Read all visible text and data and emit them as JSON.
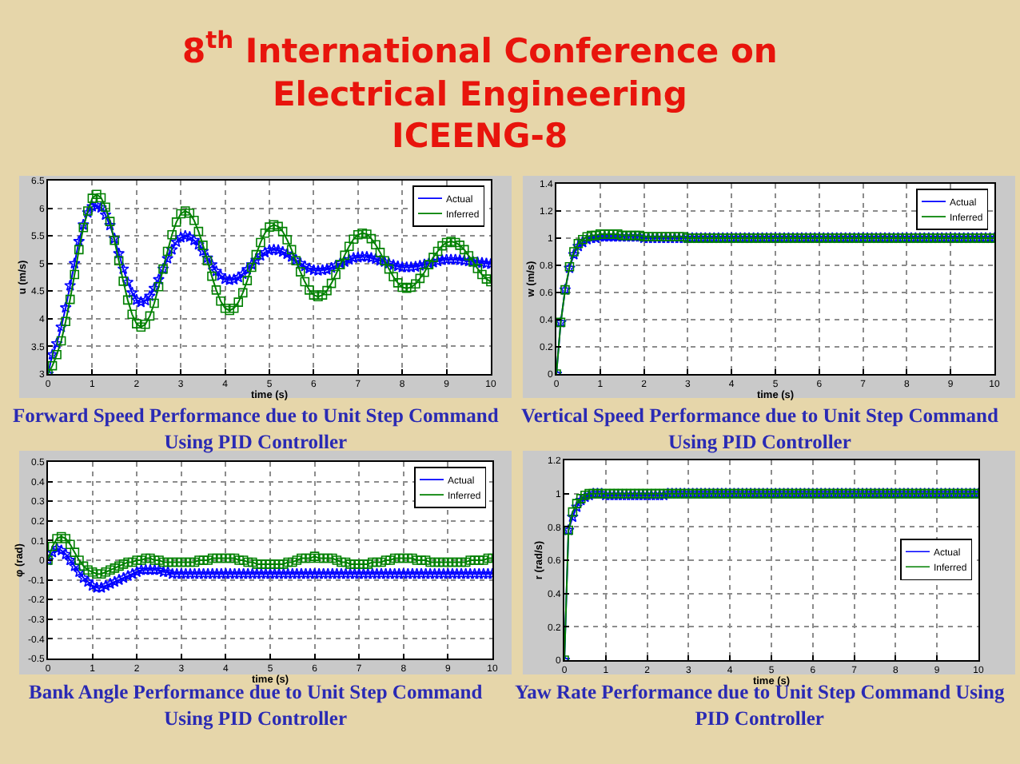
{
  "chart_data": [
    {
      "type": "other",
      "title": "8$^{th}$ International Conference on Electrical Engineering",
      "subtitle": "ICEENG-8"
    },
    {
      "type": "line",
      "title": "Forward Speed Performance due to Unit Step Command Using PID Controller",
      "xlabel": "time (s)",
      "ylabel": "u (m/s)",
      "xlim": [
        0,
        10
      ],
      "xticks": [
        0,
        1,
        2,
        3,
        4,
        5,
        6,
        7,
        8,
        9,
        10
      ],
      "ylim": [
        3,
        6.5
      ],
      "yticks": [
        3,
        3.5,
        4,
        4.5,
        5,
        5.5,
        6,
        6.5
      ],
      "grid": true,
      "legend": "top right",
      "x": [
        0,
        0.1,
        0.2,
        0.3,
        0.4,
        0.5,
        0.6,
        0.7,
        0.8,
        0.9,
        1,
        1.1,
        1.2,
        1.3,
        1.4,
        1.5,
        1.6,
        1.7,
        1.8,
        1.9,
        2,
        2.1,
        2.2,
        2.3,
        2.4,
        2.5,
        2.6,
        2.7,
        2.8,
        2.9,
        3,
        3.1,
        3.2,
        3.3,
        3.4,
        3.5,
        3.6,
        3.7,
        3.8,
        3.9,
        4,
        4.1,
        4.2,
        4.3,
        4.4,
        4.5,
        4.6,
        4.7,
        4.8,
        4.9,
        5,
        5.1,
        5.2,
        5.3,
        5.4,
        5.5,
        5.6,
        5.7,
        5.8,
        5.9,
        6,
        6.1,
        6.2,
        6.3,
        6.4,
        6.5,
        6.6,
        6.7,
        6.8,
        6.9,
        7,
        7.1,
        7.2,
        7.3,
        7.4,
        7.5,
        7.6,
        7.7,
        7.8,
        7.9,
        8,
        8.1,
        8.2,
        8.3,
        8.4,
        8.5,
        8.6,
        8.7,
        8.8,
        8.9,
        9,
        9.1,
        9.2,
        9.3,
        9.4,
        9.5,
        9.6,
        9.7,
        9.8,
        9.9,
        10
      ],
      "series": [
        {
          "name": "Actual",
          "color": "#0000ff",
          "marker": "star",
          "values": [
            3,
            3.35,
            3.55,
            3.85,
            4.2,
            4.6,
            5,
            5.4,
            5.7,
            5.92,
            6.03,
            6.05,
            6.01,
            5.88,
            5.69,
            5.45,
            5.18,
            4.9,
            4.66,
            4.47,
            4.34,
            4.3,
            4.33,
            4.41,
            4.55,
            4.71,
            4.9,
            5.09,
            5.25,
            5.39,
            5.47,
            5.5,
            5.48,
            5.42,
            5.34,
            5.22,
            5.1,
            4.98,
            4.86,
            4.78,
            4.72,
            4.7,
            4.71,
            4.75,
            4.81,
            4.89,
            4.98,
            5.06,
            5.14,
            5.2,
            5.24,
            5.25,
            5.24,
            5.21,
            5.17,
            5.12,
            5.06,
            5,
            4.95,
            4.91,
            4.88,
            4.87,
            4.88,
            4.89,
            4.92,
            4.96,
            5,
            5.03,
            5.07,
            5.1,
            5.11,
            5.12,
            5.12,
            5.1,
            5.08,
            5.05,
            5.03,
            5,
            4.97,
            4.95,
            4.93,
            4.93,
            4.93,
            4.94,
            4.96,
            4.98,
            5,
            5.02,
            5.04,
            5.06,
            5.07,
            5.07,
            5.07,
            5.06,
            5.05,
            5.04,
            5.03,
            5.02,
            5.01,
            5,
            4.99
          ]
        },
        {
          "name": "Inferred",
          "color": "#008000",
          "marker": "square",
          "values": [
            3,
            3.15,
            3.35,
            3.6,
            3.95,
            4.35,
            4.8,
            5.25,
            5.65,
            5.95,
            6.18,
            6.25,
            6.19,
            6.02,
            5.76,
            5.42,
            5.05,
            4.68,
            4.34,
            4.08,
            3.91,
            3.85,
            3.9,
            4.05,
            4.28,
            4.58,
            4.9,
            5.22,
            5.52,
            5.75,
            5.9,
            5.95,
            5.91,
            5.78,
            5.58,
            5.33,
            5.05,
            4.77,
            4.52,
            4.32,
            4.19,
            4.15,
            4.19,
            4.3,
            4.47,
            4.69,
            4.93,
            5.16,
            5.38,
            5.55,
            5.66,
            5.7,
            5.67,
            5.58,
            5.43,
            5.25,
            5.05,
            4.85,
            4.67,
            4.52,
            4.43,
            4.4,
            4.43,
            4.51,
            4.64,
            4.8,
            4.98,
            5.15,
            5.31,
            5.44,
            5.52,
            5.55,
            5.53,
            5.45,
            5.34,
            5.2,
            5.05,
            4.9,
            4.76,
            4.65,
            4.57,
            4.55,
            4.57,
            4.63,
            4.73,
            4.84,
            4.98,
            5.11,
            5.22,
            5.32,
            5.38,
            5.4,
            5.38,
            5.33,
            5.25,
            5.14,
            5.03,
            4.91,
            4.8,
            4.72,
            4.67
          ]
        }
      ]
    },
    {
      "type": "line",
      "title": "Vertical Speed Performance due to Unit Step Command Using PID Controller",
      "xlabel": "time (s)",
      "ylabel": "w (m/s)",
      "xlim": [
        0,
        10
      ],
      "xticks": [
        0,
        1,
        2,
        3,
        4,
        5,
        6,
        7,
        8,
        9,
        10
      ],
      "ylim": [
        0,
        1.4
      ],
      "yticks": [
        0,
        0.2,
        0.4,
        0.6,
        0.8,
        1,
        1.2,
        1.4
      ],
      "grid": true,
      "legend": "top right",
      "x": [
        0,
        0.1,
        0.2,
        0.3,
        0.4,
        0.5,
        0.6,
        0.7,
        0.8,
        0.9,
        1,
        1.1,
        1.2,
        1.3,
        1.4,
        1.5,
        1.6,
        1.7,
        1.8,
        1.9,
        2,
        2.1,
        2.2,
        2.3,
        2.4,
        2.5,
        2.6,
        2.7,
        2.8,
        2.9,
        3,
        3.1,
        3.2,
        3.3,
        3.4,
        3.5,
        3.6,
        3.7,
        3.8,
        3.9,
        4,
        4.1,
        4.2,
        4.3,
        4.4,
        4.5,
        4.6,
        4.7,
        4.8,
        4.9,
        5,
        5.1,
        5.2,
        5.3,
        5.4,
        5.5,
        5.6,
        5.7,
        5.8,
        5.9,
        6,
        6.1,
        6.2,
        6.3,
        6.4,
        6.5,
        6.6,
        6.7,
        6.8,
        6.9,
        7,
        7.1,
        7.2,
        7.3,
        7.4,
        7.5,
        7.6,
        7.7,
        7.8,
        7.9,
        8,
        8.1,
        8.2,
        8.3,
        8.4,
        8.5,
        8.6,
        8.7,
        8.8,
        8.9,
        9,
        9.1,
        9.2,
        9.3,
        9.4,
        9.5,
        9.6,
        9.7,
        9.8,
        9.9,
        10
      ],
      "series": [
        {
          "name": "Actual",
          "color": "#0000ff",
          "marker": "star",
          "values": [
            0,
            0.38,
            0.62,
            0.78,
            0.88,
            0.94,
            0.97,
            0.99,
            1,
            1,
            1.01,
            1.01,
            1.01,
            1.01,
            1.01,
            1.01,
            1.01,
            1.01,
            1.01,
            1.01,
            1,
            1,
            1,
            1,
            1,
            1,
            1,
            1,
            1,
            1,
            1,
            1,
            1,
            1,
            1,
            1,
            1,
            1,
            1,
            1,
            1,
            1,
            1,
            1,
            1,
            1,
            1,
            1,
            1,
            1,
            1,
            1,
            1,
            1,
            1,
            1,
            1,
            1,
            1,
            1,
            1,
            1,
            1,
            1,
            1,
            1,
            1,
            1,
            1,
            1,
            1,
            1,
            1,
            1,
            1,
            1,
            1,
            1,
            1,
            1,
            1,
            1,
            1,
            1,
            1,
            1,
            1,
            1,
            1,
            1,
            1,
            1,
            1,
            1,
            1,
            1,
            1,
            1,
            1,
            1,
            1
          ]
        },
        {
          "name": "Inferred",
          "color": "#008000",
          "marker": "square",
          "values": [
            0,
            0.38,
            0.62,
            0.79,
            0.9,
            0.96,
            0.99,
            1.01,
            1.02,
            1.02,
            1.03,
            1.03,
            1.03,
            1.03,
            1.03,
            1.02,
            1.02,
            1.02,
            1.02,
            1.02,
            1.01,
            1.01,
            1.01,
            1.01,
            1.01,
            1.01,
            1.01,
            1.01,
            1.01,
            1.01,
            1,
            1,
            1,
            1,
            1,
            1,
            1,
            1,
            1,
            1,
            1,
            1,
            1,
            1,
            1,
            1,
            1,
            1,
            1,
            1,
            1,
            1,
            1,
            1,
            1,
            1,
            1,
            1,
            1,
            1,
            1,
            1,
            1,
            1,
            1,
            1,
            1,
            1,
            1,
            1,
            1,
            1,
            1,
            1,
            1,
            1,
            1,
            1,
            1,
            1,
            1,
            1,
            1,
            1,
            1,
            1,
            1,
            1,
            1,
            1,
            1,
            1,
            1,
            1,
            1,
            1,
            1,
            1,
            1,
            1,
            1
          ]
        }
      ]
    },
    {
      "type": "line",
      "title": "Bank Angle Performance due to Unit Step Command Using PID Controller",
      "xlabel": "time (s)",
      "ylabel": "φ (rad)",
      "xlim": [
        0,
        10
      ],
      "xticks": [
        0,
        1,
        2,
        3,
        4,
        5,
        6,
        7,
        8,
        9,
        10
      ],
      "ylim": [
        -0.5,
        0.5
      ],
      "yticks": [
        -0.5,
        -0.4,
        -0.3,
        -0.2,
        -0.1,
        0,
        0.1,
        0.2,
        0.3,
        0.4,
        0.5
      ],
      "grid": true,
      "legend": "top right",
      "x": [
        0,
        0.1,
        0.2,
        0.3,
        0.4,
        0.5,
        0.6,
        0.7,
        0.8,
        0.9,
        1,
        1.1,
        1.2,
        1.3,
        1.4,
        1.5,
        1.6,
        1.7,
        1.8,
        1.9,
        2,
        2.1,
        2.2,
        2.3,
        2.4,
        2.5,
        2.6,
        2.7,
        2.8,
        2.9,
        3,
        3.1,
        3.2,
        3.3,
        3.4,
        3.5,
        3.6,
        3.7,
        3.8,
        3.9,
        4,
        4.1,
        4.2,
        4.3,
        4.4,
        4.5,
        4.6,
        4.7,
        4.8,
        4.9,
        5,
        5.1,
        5.2,
        5.3,
        5.4,
        5.5,
        5.6,
        5.7,
        5.8,
        5.9,
        6,
        6.1,
        6.2,
        6.3,
        6.4,
        6.5,
        6.6,
        6.7,
        6.8,
        6.9,
        7,
        7.1,
        7.2,
        7.3,
        7.4,
        7.5,
        7.6,
        7.7,
        7.8,
        7.9,
        8,
        8.1,
        8.2,
        8.3,
        8.4,
        8.5,
        8.6,
        8.7,
        8.8,
        8.9,
        9,
        9.1,
        9.2,
        9.3,
        9.4,
        9.5,
        9.6,
        9.7,
        9.8,
        9.9,
        10
      ],
      "series": [
        {
          "name": "Actual",
          "color": "#0000ff",
          "marker": "star",
          "values": [
            0,
            0.04,
            0.06,
            0.05,
            0.03,
            0,
            -0.03,
            -0.06,
            -0.09,
            -0.11,
            -0.13,
            -0.14,
            -0.14,
            -0.13,
            -0.12,
            -0.11,
            -0.1,
            -0.09,
            -0.08,
            -0.07,
            -0.06,
            -0.05,
            -0.05,
            -0.05,
            -0.05,
            -0.05,
            -0.06,
            -0.06,
            -0.07,
            -0.07,
            -0.07,
            -0.07,
            -0.07,
            -0.07,
            -0.07,
            -0.07,
            -0.07,
            -0.07,
            -0.07,
            -0.07,
            -0.07,
            -0.07,
            -0.07,
            -0.07,
            -0.07,
            -0.07,
            -0.07,
            -0.07,
            -0.07,
            -0.07,
            -0.07,
            -0.07,
            -0.07,
            -0.07,
            -0.07,
            -0.07,
            -0.07,
            -0.07,
            -0.07,
            -0.07,
            -0.07,
            -0.07,
            -0.07,
            -0.07,
            -0.07,
            -0.07,
            -0.07,
            -0.07,
            -0.07,
            -0.07,
            -0.07,
            -0.07,
            -0.07,
            -0.07,
            -0.07,
            -0.07,
            -0.07,
            -0.07,
            -0.07,
            -0.07,
            -0.07,
            -0.07,
            -0.07,
            -0.07,
            -0.07,
            -0.07,
            -0.07,
            -0.07,
            -0.07,
            -0.07,
            -0.07,
            -0.07,
            -0.07,
            -0.07,
            -0.07,
            -0.07,
            -0.07,
            -0.07,
            -0.07,
            -0.07,
            -0.07
          ]
        },
        {
          "name": "Inferred",
          "color": "#008000",
          "marker": "square",
          "values": [
            0,
            0.07,
            0.11,
            0.12,
            0.11,
            0.08,
            0.04,
            0,
            -0.03,
            -0.05,
            -0.06,
            -0.07,
            -0.07,
            -0.06,
            -0.05,
            -0.04,
            -0.03,
            -0.02,
            -0.01,
            -0.01,
            0,
            0,
            0.01,
            0.01,
            0,
            0,
            -0.01,
            -0.01,
            -0.01,
            -0.01,
            -0.01,
            -0.01,
            -0.01,
            -0.01,
            0,
            0,
            0,
            0.01,
            0.01,
            0.01,
            0.01,
            0.01,
            0.01,
            0,
            0,
            -0.01,
            -0.01,
            -0.02,
            -0.02,
            -0.02,
            -0.02,
            -0.02,
            -0.02,
            -0.02,
            -0.01,
            -0.01,
            0,
            0.01,
            0.01,
            0.01,
            0.02,
            0.01,
            0.01,
            0.01,
            0.01,
            0,
            -0.01,
            -0.01,
            -0.02,
            -0.02,
            -0.02,
            -0.02,
            -0.02,
            -0.01,
            -0.01,
            -0.01,
            0,
            0,
            0.01,
            0.01,
            0.01,
            0.01,
            0.01,
            0,
            0,
            0,
            -0.01,
            -0.01,
            -0.01,
            -0.01,
            -0.01,
            -0.01,
            -0.01,
            -0.01,
            -0.01,
            0,
            0,
            0,
            0,
            0.01,
            0.01
          ]
        }
      ]
    },
    {
      "type": "line",
      "title": "Yaw Rate Performance due to Unit Step Command Using PID Controller",
      "xlabel": "time (s)",
      "ylabel": "r (rad/s)",
      "xlim": [
        0,
        10
      ],
      "xticks": [
        0,
        1,
        2,
        3,
        4,
        5,
        6,
        7,
        8,
        9,
        10
      ],
      "ylim": [
        0,
        1.2
      ],
      "yticks": [
        0,
        0.2,
        0.4,
        0.6,
        0.8,
        1,
        1.2
      ],
      "grid": true,
      "legend": "right",
      "x": [
        0,
        0.1,
        0.2,
        0.3,
        0.4,
        0.5,
        0.6,
        0.7,
        0.8,
        0.9,
        1,
        1.1,
        1.2,
        1.3,
        1.4,
        1.5,
        1.6,
        1.7,
        1.8,
        1.9,
        2,
        2.1,
        2.2,
        2.3,
        2.4,
        2.5,
        2.6,
        2.7,
        2.8,
        2.9,
        3,
        3.1,
        3.2,
        3.3,
        3.4,
        3.5,
        3.6,
        3.7,
        3.8,
        3.9,
        4,
        4.1,
        4.2,
        4.3,
        4.4,
        4.5,
        4.6,
        4.7,
        4.8,
        4.9,
        5,
        5.1,
        5.2,
        5.3,
        5.4,
        5.5,
        5.6,
        5.7,
        5.8,
        5.9,
        6,
        6.1,
        6.2,
        6.3,
        6.4,
        6.5,
        6.6,
        6.7,
        6.8,
        6.9,
        7,
        7.1,
        7.2,
        7.3,
        7.4,
        7.5,
        7.6,
        7.7,
        7.8,
        7.9,
        8,
        8.1,
        8.2,
        8.3,
        8.4,
        8.5,
        8.6,
        8.7,
        8.8,
        8.9,
        9,
        9.1,
        9.2,
        9.3,
        9.4,
        9.5,
        9.6,
        9.7,
        9.8,
        9.9,
        10
      ],
      "series": [
        {
          "name": "Actual",
          "color": "#0000ff",
          "marker": "star",
          "values": [
            0,
            0.78,
            0.86,
            0.92,
            0.96,
            0.98,
            0.99,
            1,
            1,
            1,
            0.99,
            0.99,
            0.99,
            0.99,
            0.99,
            0.99,
            0.99,
            0.99,
            0.99,
            0.99,
            0.99,
            0.99,
            0.99,
            0.99,
            0.99,
            1,
            1,
            1,
            1,
            1,
            1,
            1,
            1,
            1,
            1,
            1,
            1,
            1,
            1,
            1,
            1,
            1,
            1,
            1,
            1,
            1,
            1,
            1,
            1,
            1,
            1,
            1,
            1,
            1,
            1,
            1,
            1,
            1,
            1,
            1,
            1,
            1,
            1,
            1,
            1,
            1,
            1,
            1,
            1,
            1,
            1,
            1,
            1,
            1,
            1,
            1,
            1,
            1,
            1,
            1,
            1,
            1,
            1,
            1,
            1,
            1,
            1,
            1,
            1,
            1,
            1,
            1,
            1,
            1,
            1,
            1,
            1,
            1,
            1,
            1,
            1
          ]
        },
        {
          "name": "Inferred",
          "color": "#008000",
          "marker": "square",
          "values": [
            0,
            0.78,
            0.89,
            0.94,
            0.97,
            0.99,
            1,
            1,
            1,
            1,
            1,
            1,
            1,
            1,
            1,
            1,
            1,
            1,
            1,
            1,
            1,
            1,
            1,
            1,
            1,
            1,
            1,
            1,
            1,
            1,
            1,
            1,
            1,
            1,
            1,
            1,
            1,
            1,
            1,
            1,
            1,
            1,
            1,
            1,
            1,
            1,
            1,
            1,
            1,
            1,
            1,
            1,
            1,
            1,
            1,
            1,
            1,
            1,
            1,
            1,
            1,
            1,
            1,
            1,
            1,
            1,
            1,
            1,
            1,
            1,
            1,
            1,
            1,
            1,
            1,
            1,
            1,
            1,
            1,
            1,
            1,
            1,
            1,
            1,
            1,
            1,
            1,
            1,
            1,
            1,
            1,
            1,
            1,
            1,
            1,
            1,
            1,
            1,
            1,
            1,
            1
          ]
        }
      ]
    }
  ]
}
